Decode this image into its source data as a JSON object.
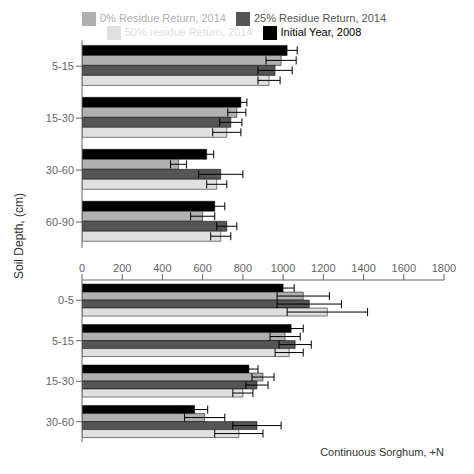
{
  "chart_data": [
    {
      "type": "bar",
      "orientation": "horizontal",
      "ylabel": "Soil Depth, (cm)",
      "categories": [
        "5-15",
        "15-30",
        "30-60",
        "60-90"
      ],
      "series": [
        {
          "name": "Initial Year, 2008",
          "color": "#000000",
          "values": [
            1020,
            790,
            620,
            660
          ],
          "errors": [
            50,
            30,
            35,
            50
          ]
        },
        {
          "name": "0% Residue Return, 2014",
          "color": "#b0b0b0",
          "values": [
            990,
            770,
            480,
            600
          ],
          "errors": [
            75,
            45,
            40,
            60
          ]
        },
        {
          "name": "25% Residue Return, 2014",
          "color": "#555555",
          "values": [
            960,
            740,
            690,
            720
          ],
          "errors": [
            85,
            55,
            110,
            50
          ]
        },
        {
          "name": "50% residue Return, 2014",
          "color": "#e0e0e0",
          "values": [
            930,
            720,
            670,
            690
          ],
          "errors": [
            55,
            70,
            50,
            50
          ]
        }
      ],
      "xlim": [
        0,
        1800
      ],
      "xticks": [
        0,
        200,
        400,
        600,
        800,
        1000,
        1200,
        1400,
        1600,
        1800
      ],
      "legend": "top",
      "grid": false,
      "tick_labels": "y"
    },
    {
      "type": "bar",
      "orientation": "horizontal",
      "annotation": "Continuous Sorghum, +N",
      "categories": [
        "0-5",
        "5-15",
        "15-30",
        "30-60"
      ],
      "series": [
        {
          "name": "Initial Year, 2008",
          "color": "#000000",
          "values": [
            1000,
            1040,
            830,
            560
          ],
          "errors": [
            55,
            60,
            45,
            65
          ]
        },
        {
          "name": "0% Residue Return, 2014",
          "color": "#b0b0b0",
          "values": [
            1100,
            1010,
            900,
            610
          ],
          "errors": [
            130,
            75,
            55,
            100
          ]
        },
        {
          "name": "25% Residue Return, 2014",
          "color": "#555555",
          "values": [
            1130,
            1060,
            870,
            870
          ],
          "errors": [
            160,
            80,
            55,
            120
          ]
        },
        {
          "name": "50% residue Return, 2014",
          "color": "#e0e0e0",
          "values": [
            1220,
            1030,
            800,
            780
          ],
          "errors": [
            200,
            70,
            50,
            120
          ]
        }
      ],
      "xlim": [
        0,
        1800
      ],
      "xticks": [
        0,
        200,
        400,
        600,
        800,
        1000,
        1200,
        1400,
        1600,
        1800
      ],
      "grid": false,
      "tick_labels": true
    }
  ]
}
